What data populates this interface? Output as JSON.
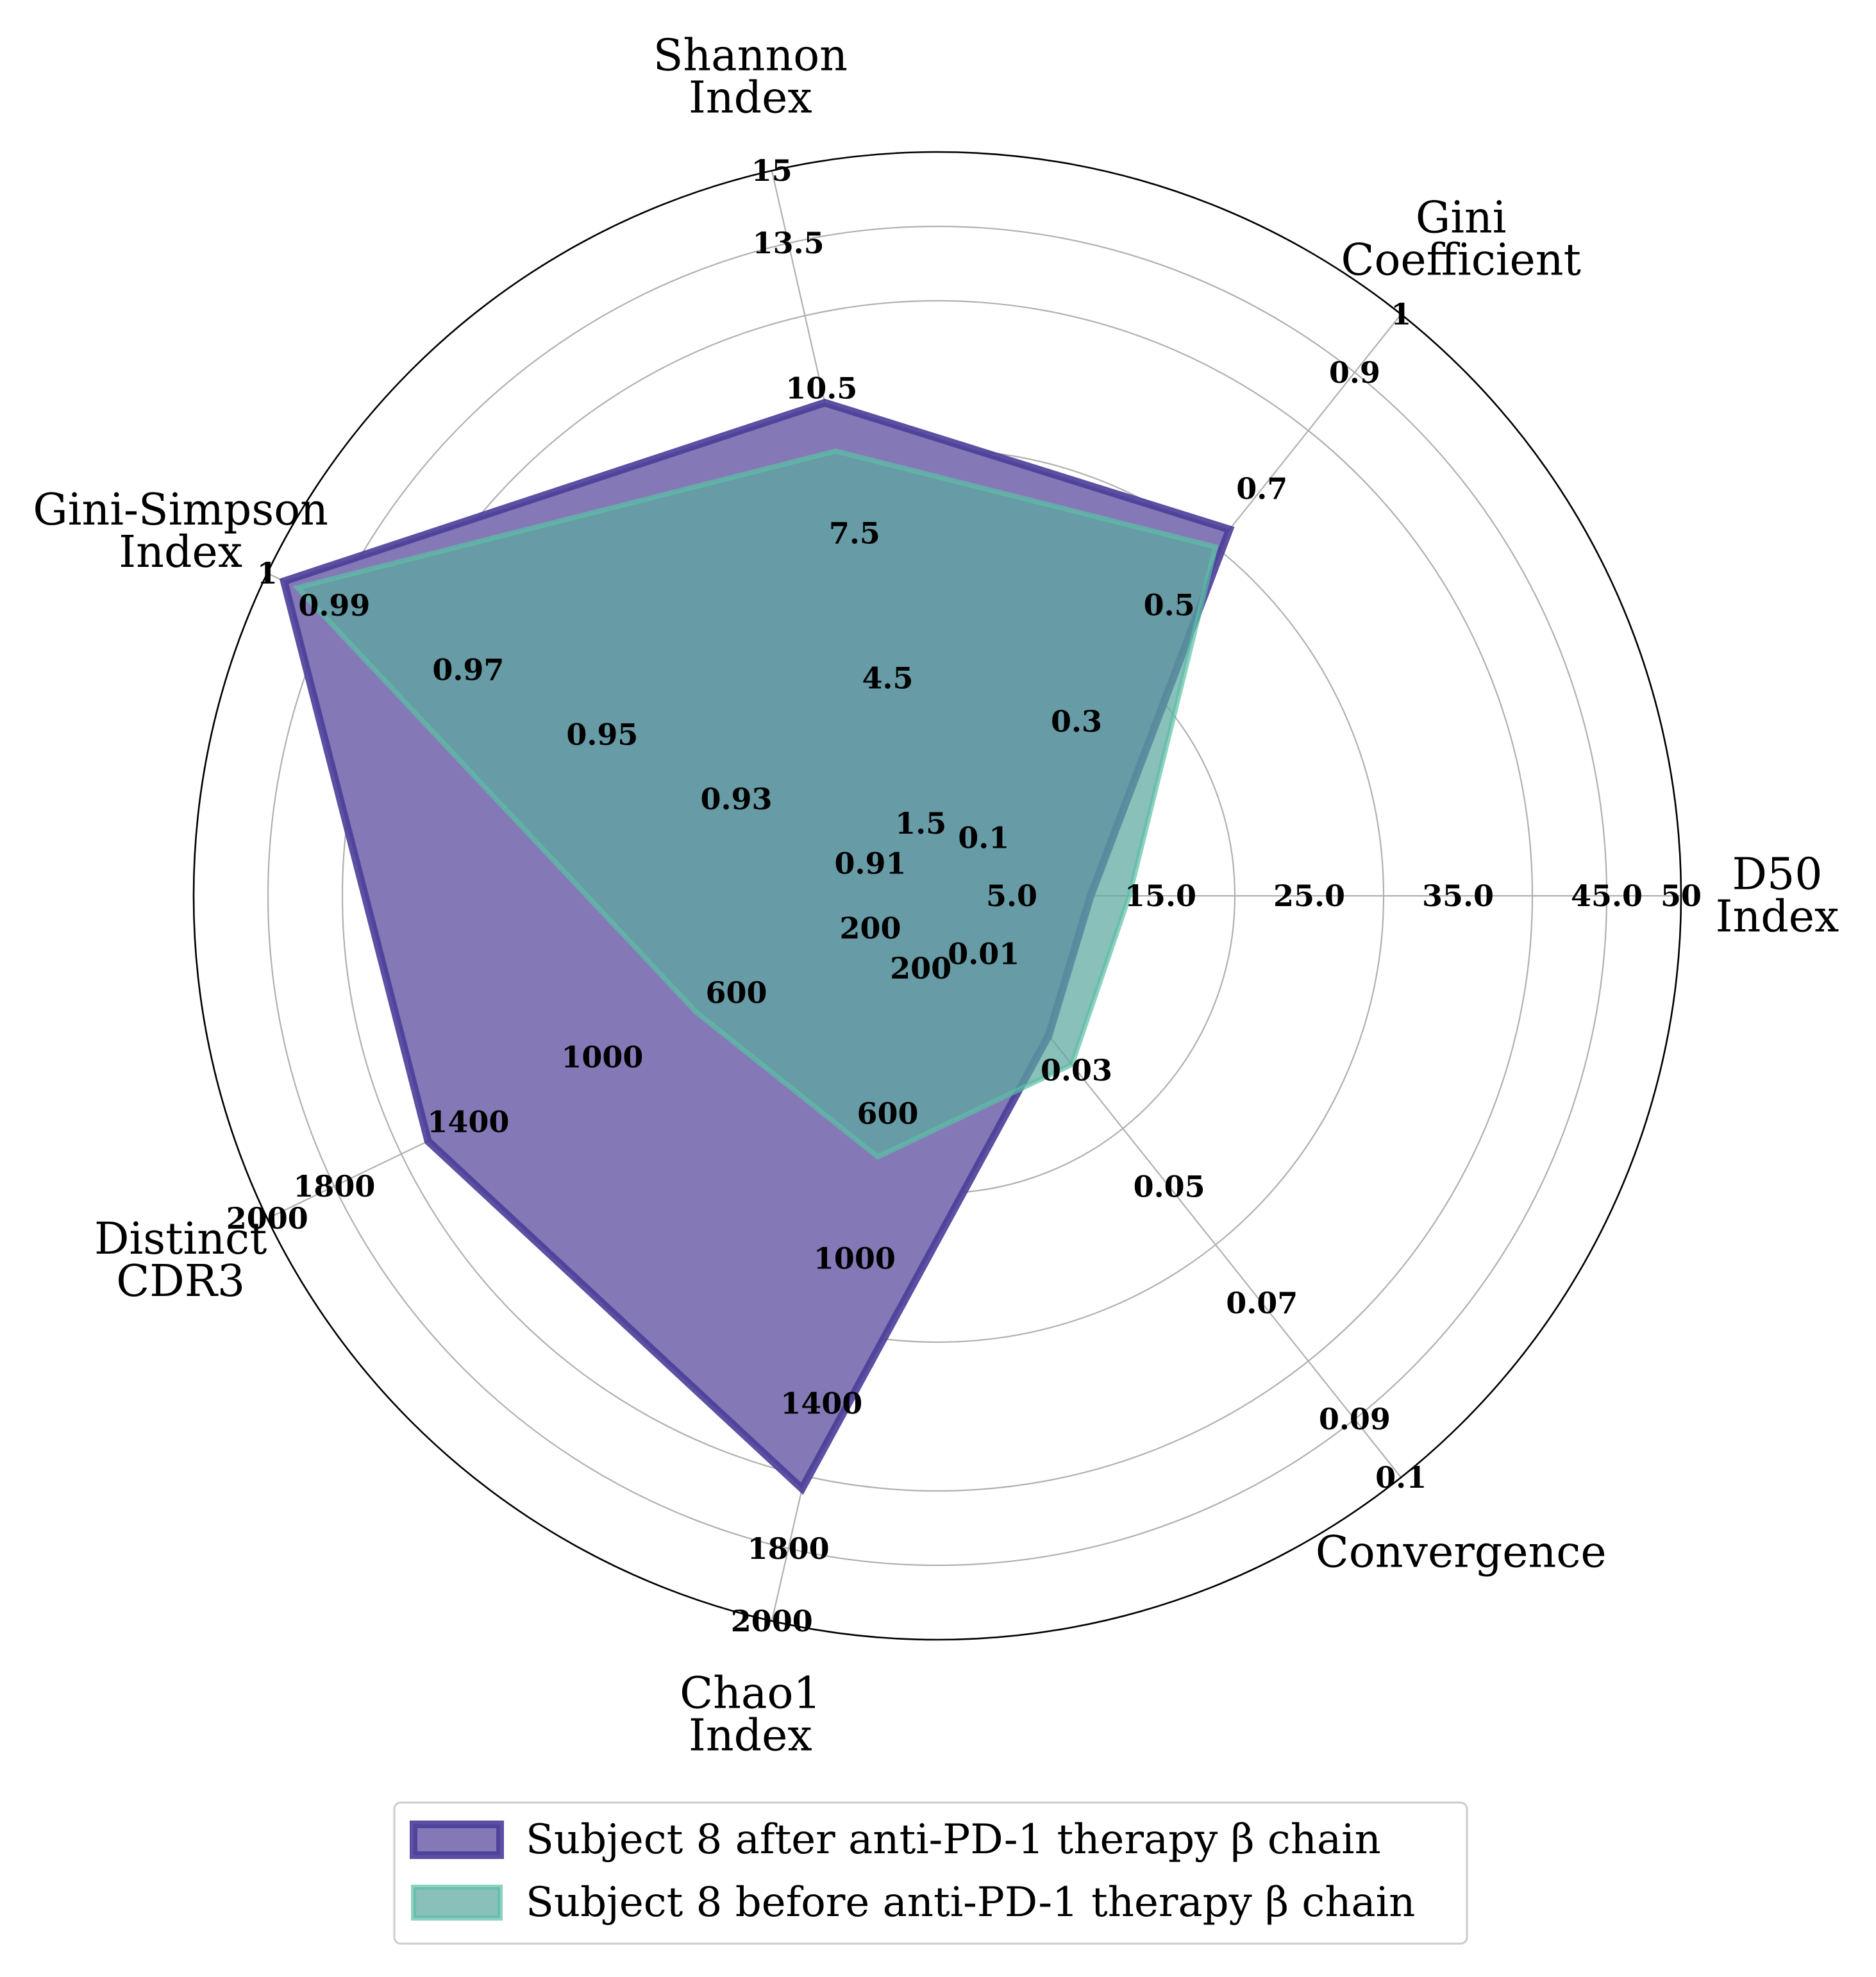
{
  "chart_data": {
    "type": "radar",
    "axes": [
      {
        "label": "D50 Index",
        "lines": [
          "D50",
          "Index"
        ],
        "angle_deg": 0,
        "ticks": [
          "5.0",
          "15.0",
          "25.0",
          "35.0",
          "45.0",
          "50"
        ],
        "min": 0,
        "max": 50
      },
      {
        "label": "Gini Coefficient",
        "lines": [
          "Gini",
          "Coefficient"
        ],
        "angle_deg": 51.43,
        "ticks": [
          "0.1",
          "0.3",
          "0.5",
          "0.7",
          "0.9",
          "1"
        ],
        "min": 0,
        "max": 1
      },
      {
        "label": "Shannon Index",
        "lines": [
          "Shannon",
          "Index"
        ],
        "angle_deg": 102.86,
        "ticks": [
          "1.5",
          "4.5",
          "7.5",
          "10.5",
          "13.5",
          "15"
        ],
        "min": 0,
        "max": 15
      },
      {
        "label": "Gini-Simpson Index",
        "lines": [
          "Gini-Simpson",
          "Index"
        ],
        "angle_deg": 154.29,
        "ticks": [
          "0.91",
          "0.93",
          "0.95",
          "0.97",
          "0.99",
          "1"
        ],
        "min": 0.9,
        "max": 1
      },
      {
        "label": "Distinct CDR3",
        "lines": [
          "Distinct",
          "CDR3"
        ],
        "angle_deg": 205.71,
        "ticks": [
          "200",
          "600",
          "1000",
          "1400",
          "1800",
          "2000"
        ],
        "min": 0,
        "max": 2000
      },
      {
        "label": "Chao1 Index",
        "lines": [
          "Chao1",
          "Index"
        ],
        "angle_deg": 257.14,
        "ticks": [
          "200",
          "600",
          "1000",
          "1400",
          "1800",
          "2000"
        ],
        "min": 0,
        "max": 2000
      },
      {
        "label": "Convergence",
        "lines": [
          "Convergence"
        ],
        "angle_deg": 308.57,
        "ticks": [
          "0.01",
          "0.03",
          "0.05",
          "0.07",
          "0.09",
          "0.1"
        ],
        "min": 0,
        "max": 0.1
      }
    ],
    "series": [
      {
        "name": "Subject 8 after anti-PD-1 therapy β chain",
        "fill": "#8479b6",
        "stroke": "#4a3d99",
        "values": [
          10.3,
          0.63,
          10.2,
          0.9975,
          1520,
          1635,
          0.024
        ]
      },
      {
        "name": "Subject 8 before anti-PD-1 therapy β chain",
        "fill": "#5ba8a0",
        "stroke": "#5dbfa6",
        "values": [
          12.9,
          0.6,
          9.2,
          0.9955,
          720,
          720,
          0.029
        ]
      }
    ],
    "grid": true,
    "legend_position": "bottom-center"
  }
}
